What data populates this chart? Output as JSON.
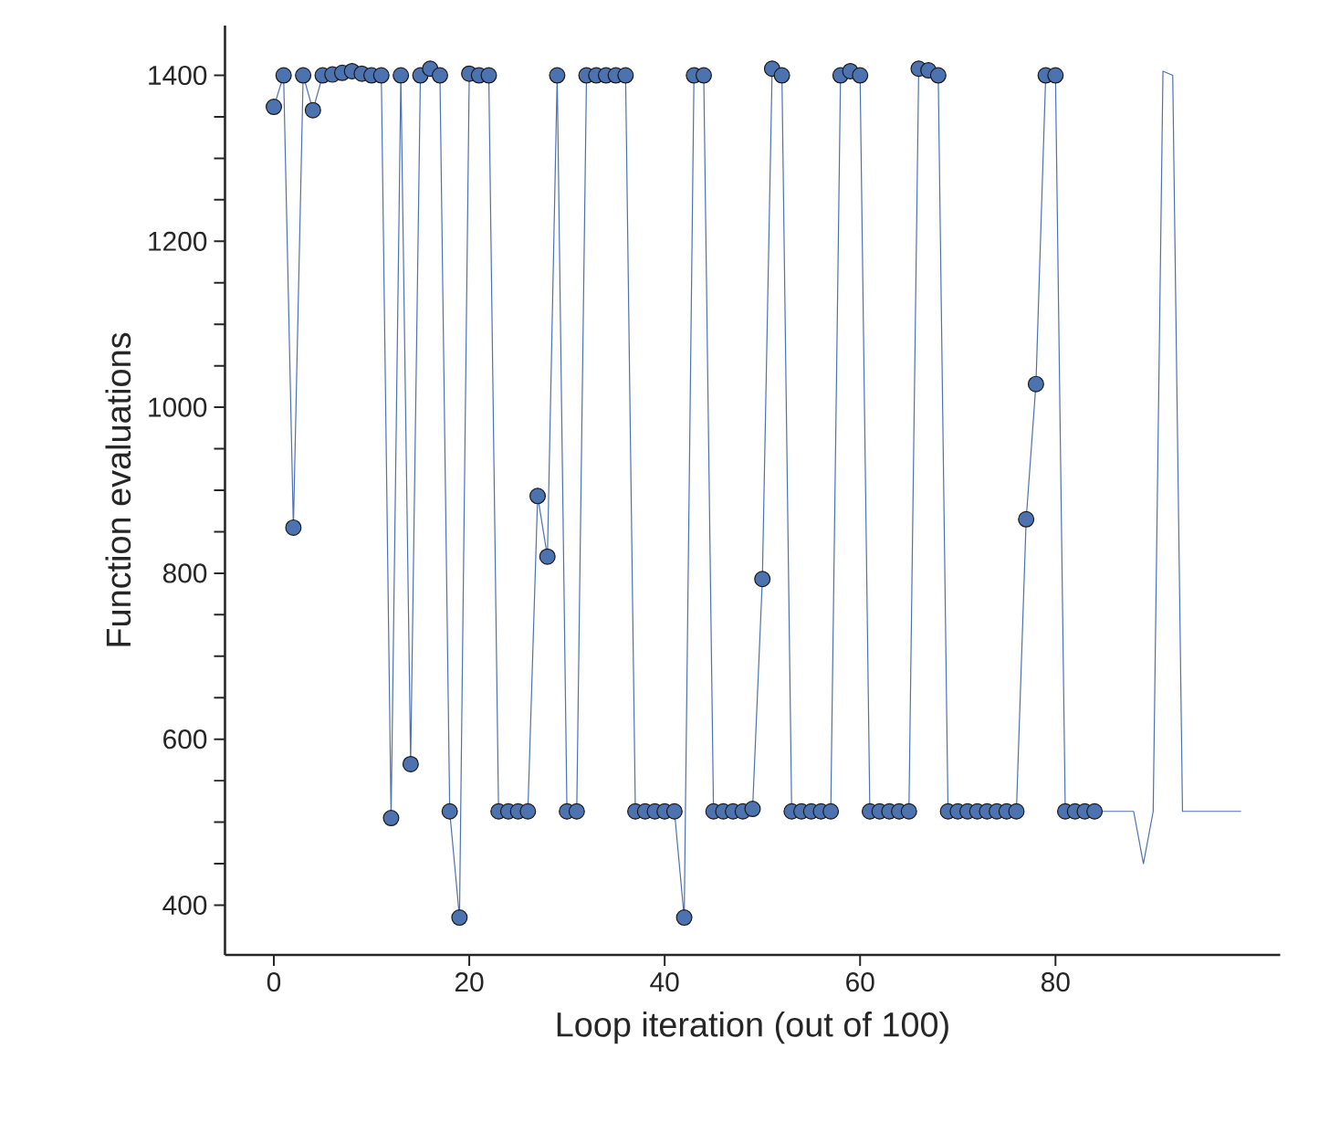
{
  "chart_data": {
    "type": "line",
    "xlabel": "Loop iteration (out of 100)",
    "ylabel": "Function evaluations",
    "xlim": [
      -5,
      103
    ],
    "ylim": [
      340,
      1460
    ],
    "xticks": [
      0,
      20,
      40,
      60,
      80
    ],
    "yticks": [
      400,
      {
        "value": 450,
        "label": null
      },
      600,
      {
        "value": 500,
        "label": null
      },
      {
        "value": 550,
        "label": null
      },
      {
        "value": 650,
        "label": null
      },
      {
        "value": 700,
        "label": null
      },
      {
        "value": 750,
        "label": null
      },
      800,
      {
        "value": 850,
        "label": null
      },
      {
        "value": 900,
        "label": null
      },
      {
        "value": 950,
        "label": null
      },
      1000,
      {
        "value": 1050,
        "label": null
      },
      {
        "value": 1100,
        "label": null
      },
      {
        "value": 1150,
        "label": null
      },
      1200,
      {
        "value": 1250,
        "label": null
      },
      {
        "value": 1300,
        "label": null
      },
      {
        "value": 1350,
        "label": null
      },
      1400
    ],
    "grid": false,
    "series": [
      {
        "marker": "none",
        "color": "#4c72b0",
        "x": [
          0,
          1,
          2,
          3,
          4,
          5,
          6,
          7,
          8,
          9,
          10,
          11,
          12,
          13,
          14,
          15,
          16,
          17,
          18,
          19,
          20,
          21,
          22,
          23,
          24,
          25,
          26,
          27,
          28,
          29,
          30,
          31,
          32,
          33,
          34,
          35,
          36,
          37,
          38,
          39,
          40,
          41,
          42,
          43,
          44,
          45,
          46,
          47,
          48,
          49,
          50,
          51,
          52,
          53,
          54,
          55,
          56,
          57,
          58,
          59,
          60,
          61,
          62,
          63,
          64,
          65,
          66,
          67,
          68,
          69,
          70,
          71,
          72,
          73,
          74,
          75,
          76,
          77,
          78,
          79,
          80,
          81,
          82,
          83,
          84,
          85,
          86,
          87,
          88,
          89,
          90,
          91,
          92,
          93,
          94,
          95,
          96,
          97,
          98,
          99
        ],
        "values": [
          1362,
          1400,
          855,
          1400,
          1358,
          1400,
          1401,
          1403,
          1405,
          1402,
          1400,
          1400,
          505,
          1400,
          570,
          1400,
          1408,
          1400,
          513,
          385,
          1402,
          1400,
          1400,
          513,
          513,
          513,
          513,
          893,
          820,
          1400,
          513,
          513,
          1400,
          1400,
          1400,
          1400,
          1400,
          513,
          513,
          513,
          513,
          513,
          385,
          1400,
          1400,
          513,
          513,
          513,
          513,
          516,
          793,
          1408,
          1400,
          513,
          513,
          513,
          513,
          513,
          1400,
          1405,
          1400,
          513,
          513,
          513,
          513,
          513,
          1408,
          1406,
          1400,
          513,
          513,
          513,
          513,
          513,
          513,
          513,
          513,
          865,
          1028,
          1400,
          1400,
          513,
          513,
          513,
          513,
          513,
          513,
          513,
          513,
          450,
          513,
          1405,
          1400,
          513,
          513,
          513,
          513,
          513,
          513,
          513
        ]
      },
      {
        "type": "scatter",
        "marker": "circle",
        "color": "#4c72b0",
        "x": [
          0,
          1,
          2,
          3,
          4,
          5,
          6,
          7,
          8,
          9,
          10,
          11,
          12,
          13,
          14,
          15,
          16,
          17,
          18,
          19,
          20,
          21,
          22,
          23,
          24,
          25,
          26,
          27,
          28,
          29,
          30,
          31,
          32,
          33,
          34,
          35,
          36,
          37,
          38,
          39,
          40,
          41,
          42,
          43,
          44,
          45,
          46,
          47,
          48,
          49,
          50,
          51,
          52,
          53,
          54,
          55,
          56,
          57,
          58,
          59,
          60,
          61,
          62,
          63,
          64,
          65,
          66,
          67,
          68,
          69,
          70,
          71,
          72,
          73,
          74,
          75,
          76,
          77,
          78,
          79,
          80,
          81,
          82,
          83,
          84
        ],
        "values": [
          1362,
          1400,
          855,
          1400,
          1358,
          1400,
          1401,
          1403,
          1405,
          1402,
          1400,
          1400,
          505,
          1400,
          570,
          1400,
          1408,
          1400,
          513,
          385,
          1402,
          1400,
          1400,
          513,
          513,
          513,
          513,
          893,
          820,
          1400,
          513,
          513,
          1400,
          1400,
          1400,
          1400,
          1400,
          513,
          513,
          513,
          513,
          513,
          385,
          1400,
          1400,
          513,
          513,
          513,
          513,
          516,
          793,
          1408,
          1400,
          513,
          513,
          513,
          513,
          513,
          1400,
          1405,
          1400,
          513,
          513,
          513,
          513,
          513,
          1408,
          1406,
          1400,
          513,
          513,
          513,
          513,
          513,
          513,
          513,
          513,
          865,
          1028,
          1400,
          1400,
          513,
          513,
          513,
          513
        ]
      }
    ]
  }
}
